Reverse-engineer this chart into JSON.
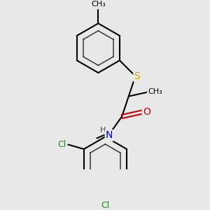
{
  "background_color": "#e8e8e8",
  "atom_colors": {
    "C": "#000000",
    "H": "#404040",
    "N": "#0000cc",
    "O": "#cc0000",
    "S": "#ccaa00",
    "Cl": "#228822"
  },
  "bond_color": "#000000",
  "bond_width": 1.5,
  "figsize": [
    3.0,
    3.0
  ],
  "dpi": 100
}
